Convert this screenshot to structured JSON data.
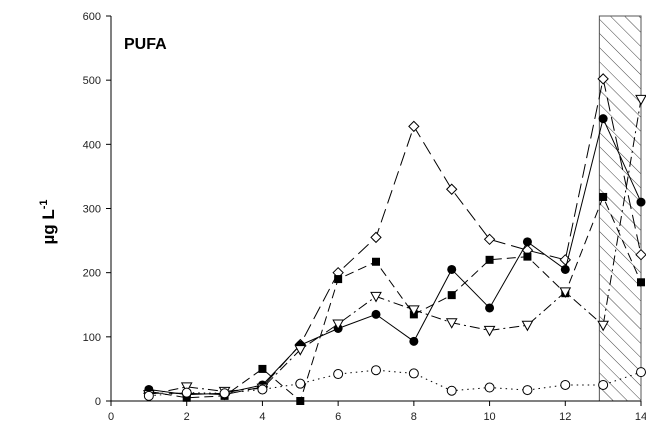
{
  "chart_data": {
    "type": "line",
    "panel_label": "PUFA",
    "title": "",
    "xlabel": "",
    "ylabel": "µg L",
    "ylabel_superscript": "-1",
    "xlim": [
      0,
      14
    ],
    "ylim": [
      0,
      600
    ],
    "x_ticks": [
      0,
      2,
      4,
      6,
      8,
      10,
      12,
      14
    ],
    "y_ticks": [
      0,
      100,
      200,
      300,
      400,
      500,
      600
    ],
    "grid": false,
    "legend": "none",
    "shaded_region": {
      "x": [
        12.9,
        14
      ],
      "pattern": "diagonal-hatch"
    },
    "series": [
      {
        "marker": "open-diamond",
        "line_style": "long-dash",
        "x": [
          1,
          2,
          3,
          4,
          5,
          6,
          7,
          8,
          9,
          10,
          11,
          12,
          13,
          14
        ],
        "y": [
          12,
          12,
          10,
          22,
          88,
          200,
          255,
          428,
          330,
          252,
          235,
          220,
          502,
          228
        ]
      },
      {
        "marker": "filled-circle",
        "line_style": "solid",
        "x": [
          1,
          2,
          3,
          4,
          5,
          6,
          7,
          8,
          9,
          10,
          11,
          12,
          13,
          14
        ],
        "y": [
          18,
          10,
          12,
          25,
          87,
          113,
          135,
          93,
          205,
          145,
          248,
          205,
          440,
          310
        ]
      },
      {
        "marker": "filled-square",
        "line_style": "medium-dash",
        "x": [
          1,
          2,
          3,
          4,
          5,
          6,
          7,
          8,
          9,
          10,
          11,
          12,
          13,
          14
        ],
        "y": [
          15,
          5,
          8,
          50,
          0,
          190,
          217,
          135,
          165,
          220,
          225,
          168,
          318,
          185
        ]
      },
      {
        "marker": "open-triangle-down",
        "line_style": "dash-dot",
        "x": [
          1,
          2,
          3,
          4,
          5,
          6,
          7,
          8,
          9,
          10,
          11,
          12,
          13,
          14
        ],
        "y": [
          10,
          22,
          15,
          20,
          80,
          120,
          163,
          142,
          122,
          110,
          118,
          170,
          118,
          470
        ]
      },
      {
        "marker": "open-circle",
        "line_style": "dotted",
        "x": [
          1,
          2,
          3,
          4,
          5,
          6,
          7,
          8,
          9,
          10,
          11,
          12,
          13,
          14
        ],
        "y": [
          8,
          13,
          12,
          18,
          27,
          42,
          48,
          43,
          16,
          21,
          17,
          25,
          25,
          45
        ]
      }
    ]
  }
}
